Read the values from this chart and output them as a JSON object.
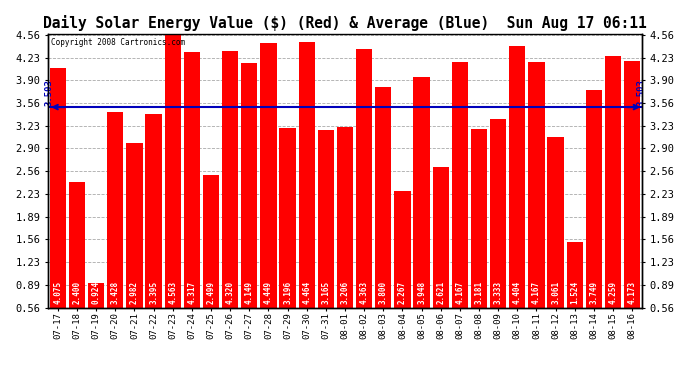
{
  "title": "Daily Solar Energy Value ($) (Red) & Average (Blue)  Sun Aug 17 06:11",
  "copyright": "Copyright 2008 Cartronics.com",
  "categories": [
    "07-17",
    "07-18",
    "07-19",
    "07-20",
    "07-21",
    "07-22",
    "07-23",
    "07-24",
    "07-25",
    "07-26",
    "07-27",
    "07-28",
    "07-29",
    "07-30",
    "07-31",
    "08-01",
    "08-02",
    "08-03",
    "08-04",
    "08-05",
    "08-06",
    "08-07",
    "08-08",
    "08-09",
    "08-10",
    "08-11",
    "08-12",
    "08-13",
    "08-14",
    "08-15",
    "08-16"
  ],
  "values": [
    4.075,
    2.4,
    0.924,
    3.428,
    2.982,
    3.395,
    4.563,
    4.317,
    2.499,
    4.32,
    4.149,
    4.449,
    3.196,
    4.464,
    3.165,
    3.206,
    4.363,
    3.8,
    2.267,
    3.948,
    2.621,
    4.167,
    3.181,
    3.333,
    4.404,
    4.167,
    3.061,
    1.524,
    3.749,
    4.259,
    4.173
  ],
  "average": 3.503,
  "bar_color": "#ff0000",
  "avg_line_color": "#0000bb",
  "background_color": "#ffffff",
  "plot_bg_color": "#ffffff",
  "title_fontsize": 10.5,
  "yticks": [
    0.56,
    0.89,
    1.23,
    1.56,
    1.89,
    2.23,
    2.56,
    2.9,
    3.23,
    3.56,
    3.9,
    4.23,
    4.56
  ],
  "ymin": 0.56,
  "ymax": 4.56,
  "grid_color": "#aaaaaa",
  "border_color": "#000000",
  "label_fontsize": 5.5,
  "tick_fontsize": 7.5,
  "xtick_fontsize": 6.5
}
